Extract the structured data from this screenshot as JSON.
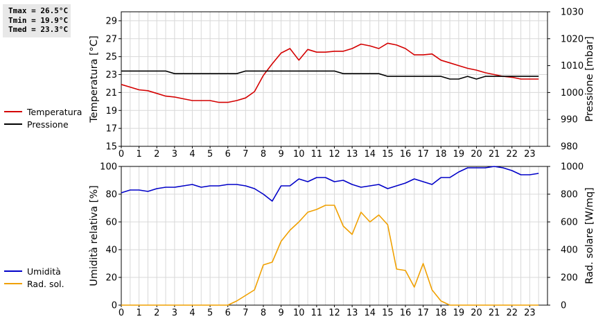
{
  "stats": {
    "tmax": "Tmax = 26.5°C",
    "tmin": "Tmin = 19.9°C",
    "tmed": "Tmed = 23.3°C"
  },
  "colors": {
    "temperature": "#d40000",
    "pressure": "#000000",
    "humidity": "#0000c8",
    "solar": "#f0a000",
    "grid": "#d8d8d8"
  },
  "chart_data": [
    {
      "type": "line",
      "xlabel": "",
      "x_ticks": [
        "0",
        "1",
        "2",
        "3",
        "4",
        "5",
        "6",
        "7",
        "8",
        "9",
        "10",
        "11",
        "12",
        "13",
        "14",
        "15",
        "16",
        "17",
        "18",
        "19",
        "20",
        "21",
        "22",
        "23"
      ],
      "xlim": [
        0,
        24
      ],
      "ylabel_left": "Temperatura [°C]",
      "ylim_left": [
        15,
        30
      ],
      "yticks_left": [
        "15",
        "17",
        "19",
        "21",
        "23",
        "25",
        "27",
        "29"
      ],
      "ylabel_right": "Pressione [mbar]",
      "ylim_right": [
        980,
        1030
      ],
      "yticks_right": [
        "980",
        "990",
        "1000",
        "1010",
        "1020",
        "1030"
      ],
      "grid": true,
      "legend_position": "left",
      "series": [
        {
          "name": "Temperatura",
          "axis": "left",
          "x": [
            0,
            0.5,
            1,
            1.5,
            2,
            2.5,
            3,
            3.5,
            4,
            4.5,
            5,
            5.5,
            6,
            6.5,
            7,
            7.5,
            8,
            8.5,
            9,
            9.5,
            10,
            10.5,
            11,
            11.5,
            12,
            12.5,
            13,
            13.5,
            14,
            14.5,
            15,
            15.5,
            16,
            16.5,
            17,
            17.5,
            18,
            18.5,
            19,
            19.5,
            20,
            20.5,
            21,
            21.5,
            22,
            22.5,
            23,
            23.5
          ],
          "values": [
            21.9,
            21.6,
            21.3,
            21.2,
            20.9,
            20.6,
            20.5,
            20.3,
            20.1,
            20.1,
            20.1,
            19.9,
            19.9,
            20.1,
            20.4,
            21.1,
            22.9,
            24.2,
            25.4,
            25.9,
            24.6,
            25.8,
            25.5,
            25.5,
            25.6,
            25.6,
            25.9,
            26.4,
            26.2,
            25.9,
            26.5,
            26.3,
            25.9,
            25.2,
            25.2,
            25.3,
            24.6,
            24.3,
            24.0,
            23.7,
            23.5,
            23.2,
            23.0,
            22.8,
            22.7,
            22.5,
            22.5,
            22.5
          ]
        },
        {
          "name": "Pressione",
          "axis": "right",
          "x": [
            0,
            0.5,
            1,
            1.5,
            2,
            2.5,
            3,
            3.5,
            4,
            4.5,
            5,
            5.5,
            6,
            6.5,
            7,
            7.5,
            8,
            8.5,
            9,
            9.5,
            10,
            10.5,
            11,
            11.5,
            12,
            12.5,
            13,
            13.5,
            14,
            14.5,
            15,
            15.5,
            16,
            16.5,
            17,
            17.5,
            18,
            18.5,
            19,
            19.5,
            20,
            20.5,
            21,
            21.5,
            22,
            22.5,
            23,
            23.5
          ],
          "values": [
            1008,
            1008,
            1008,
            1008,
            1008,
            1008,
            1007,
            1007,
            1007,
            1007,
            1007,
            1007,
            1007,
            1007,
            1008,
            1008,
            1008,
            1008,
            1008,
            1008,
            1008,
            1008,
            1008,
            1008,
            1008,
            1007,
            1007,
            1007,
            1007,
            1007,
            1006,
            1006,
            1006,
            1006,
            1006,
            1006,
            1006,
            1005,
            1005,
            1006,
            1005,
            1006,
            1006,
            1006,
            1006,
            1006,
            1006,
            1006
          ]
        }
      ]
    },
    {
      "type": "line",
      "xlabel": "",
      "x_ticks": [
        "0",
        "1",
        "2",
        "3",
        "4",
        "5",
        "6",
        "7",
        "8",
        "9",
        "10",
        "11",
        "12",
        "13",
        "14",
        "15",
        "16",
        "17",
        "18",
        "19",
        "20",
        "21",
        "22",
        "23"
      ],
      "xlim": [
        0,
        24
      ],
      "ylabel_left": "Umidità relativa [%]",
      "ylim_left": [
        0,
        100
      ],
      "yticks_left": [
        "0",
        "20",
        "40",
        "60",
        "80",
        "100"
      ],
      "ylabel_right": "Rad. solare [W/mq]",
      "ylim_right": [
        0,
        1000
      ],
      "yticks_right": [
        "0",
        "200",
        "400",
        "600",
        "800",
        "1000"
      ],
      "grid": true,
      "legend_position": "left",
      "series": [
        {
          "name": "Umidità",
          "axis": "left",
          "x": [
            0,
            0.5,
            1,
            1.5,
            2,
            2.5,
            3,
            3.5,
            4,
            4.5,
            5,
            5.5,
            6,
            6.5,
            7,
            7.5,
            8,
            8.5,
            9,
            9.5,
            10,
            10.5,
            11,
            11.5,
            12,
            12.5,
            13,
            13.5,
            14,
            14.5,
            15,
            15.5,
            16,
            16.5,
            17,
            17.5,
            18,
            18.5,
            19,
            19.5,
            20,
            20.5,
            21,
            21.5,
            22,
            22.5,
            23,
            23.5
          ],
          "values": [
            81,
            83,
            83,
            82,
            84,
            85,
            85,
            86,
            87,
            85,
            86,
            86,
            87,
            87,
            86,
            84,
            80,
            75,
            86,
            86,
            91,
            89,
            92,
            92,
            89,
            90,
            87,
            85,
            86,
            87,
            84,
            86,
            88,
            91,
            89,
            87,
            92,
            92,
            96,
            99,
            99,
            99,
            100,
            99,
            97,
            94,
            94,
            95
          ]
        },
        {
          "name": "Rad. sol.",
          "axis": "right",
          "x": [
            0,
            0.5,
            1,
            1.5,
            2,
            2.5,
            3,
            3.5,
            4,
            4.5,
            5,
            5.5,
            6,
            6.5,
            7,
            7.5,
            8,
            8.5,
            9,
            9.5,
            10,
            10.5,
            11,
            11.5,
            12,
            12.5,
            13,
            13.5,
            14,
            14.5,
            15,
            15.5,
            16,
            16.5,
            17,
            17.5,
            18,
            18.5,
            19,
            19.5,
            20,
            20.5,
            21,
            21.5,
            22,
            22.5,
            23,
            23.5
          ],
          "values": [
            0,
            0,
            0,
            0,
            0,
            0,
            0,
            0,
            0,
            0,
            0,
            0,
            0,
            30,
            70,
            110,
            290,
            310,
            460,
            540,
            600,
            670,
            690,
            720,
            720,
            570,
            510,
            670,
            600,
            650,
            580,
            260,
            250,
            130,
            300,
            110,
            30,
            0,
            0,
            0,
            0,
            0,
            0,
            0,
            0,
            0,
            0,
            0
          ]
        }
      ]
    }
  ]
}
